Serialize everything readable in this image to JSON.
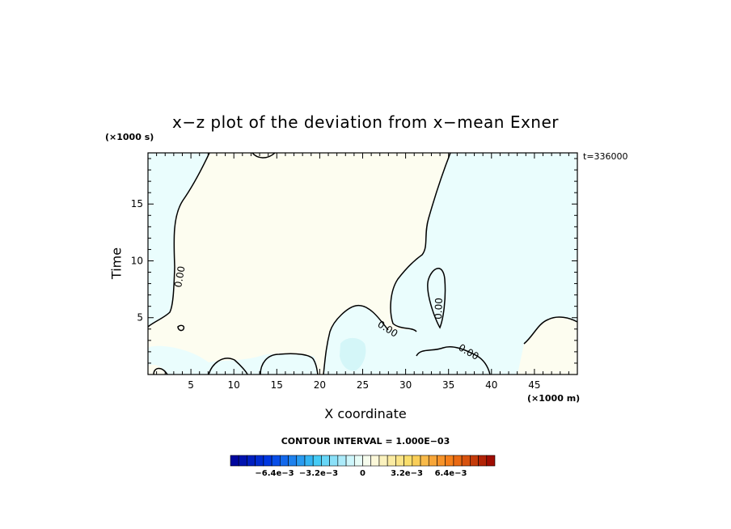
{
  "chart_data": {
    "type": "heatmap",
    "title": "x−z plot of the deviation from x−mean Exner",
    "xlabel": "X coordinate",
    "ylabel": "Time",
    "x_unit": "(×1000 m)",
    "y_unit": "(×1000 s)",
    "time_stamp": "t=336000",
    "xlim": [
      0,
      50
    ],
    "ylim": [
      0,
      19.5
    ],
    "x_ticks": [
      "5",
      "10",
      "15",
      "20",
      "25",
      "30",
      "35",
      "40",
      "45"
    ],
    "y_ticks": [
      "5",
      "10",
      "15"
    ],
    "contour_interval_text": "CONTOUR INTERVAL = 1.000E−03",
    "contour_labels": [
      "0.00",
      "0.00",
      "0.00",
      "0.00"
    ],
    "field_description_values": {
      "positive_region_color": "#fdfdf0",
      "negative_region_color": "#eafdfd",
      "deeper_negative_color": "#d4f6f8"
    },
    "colorbar": {
      "min": -0.0096,
      "max": 0.0096,
      "step": 0.0006,
      "tick_labels": [
        "−6.4e−3",
        "−3.2e−3",
        "0",
        "3.2e−3",
        "6.4e−3"
      ],
      "tick_values": [
        -0.0064,
        -0.0032,
        0,
        0.0032,
        0.0064
      ]
    },
    "grid": false,
    "legend": "colorbar bottom-center"
  }
}
